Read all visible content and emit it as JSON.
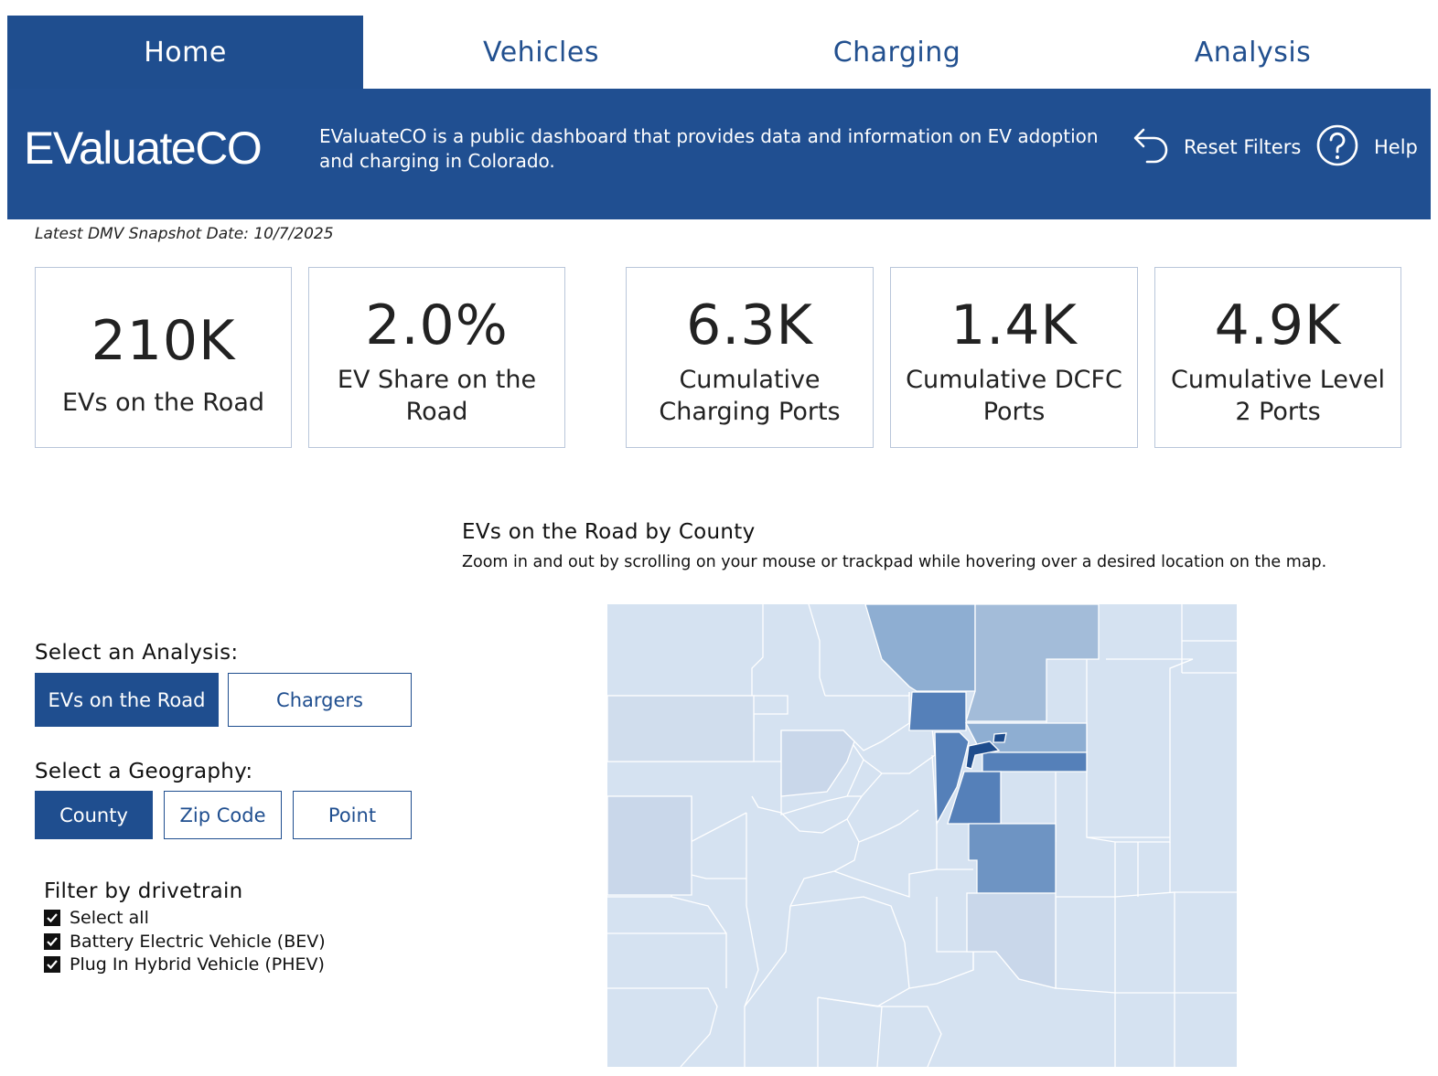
{
  "tabs": [
    {
      "label": "Home",
      "active": true
    },
    {
      "label": "Vehicles",
      "active": false
    },
    {
      "label": "Charging",
      "active": false
    },
    {
      "label": "Analysis",
      "active": false
    }
  ],
  "header": {
    "logo": "EValuateCO",
    "description": "EValuateCO is a public dashboard that provides data and information on EV adoption and charging in Colorado.",
    "reset_label": "Reset Filters",
    "reset_icon": "undo-arrow-icon",
    "help_label": "Help",
    "help_icon": "question-circle-icon"
  },
  "snapshot": "Latest DMV Snapshot Date: 10/7/2025",
  "kpis": [
    {
      "value": "210K",
      "label": "EVs on the Road"
    },
    {
      "value": "2.0%",
      "label": "EV Share on the Road"
    },
    {
      "value": "6.3K",
      "label": "Cumulative Charging Ports"
    },
    {
      "value": "1.4K",
      "label": "Cumulative DCFC Ports"
    },
    {
      "value": "4.9K",
      "label": "Cumulative Level 2 Ports"
    }
  ],
  "controls": {
    "analysis_title": "Select an Analysis:",
    "analysis_options": [
      {
        "label": "EVs on the Road",
        "selected": true
      },
      {
        "label": "Chargers",
        "selected": false
      }
    ],
    "geography_title": "Select a Geography:",
    "geography_options": [
      {
        "label": "County",
        "selected": true
      },
      {
        "label": "Zip Code",
        "selected": false
      },
      {
        "label": "Point",
        "selected": false
      }
    ],
    "filter_title": "Filter by drivetrain",
    "filter_options": [
      {
        "label": "Select all",
        "checked": true
      },
      {
        "label": "Battery Electric Vehicle (BEV)",
        "checked": true
      },
      {
        "label": "Plug In Hybrid Vehicle (PHEV)",
        "checked": true
      }
    ]
  },
  "map": {
    "title": "EVs on the Road by County",
    "subtitle": "Zoom in and out by scrolling on your mouse or trackpad while hovering over a desired location on the map.",
    "colors": {
      "base": "#d5e2f1",
      "low": "#c9d7ea",
      "mid_low": "#a3bcd9",
      "mid": "#8eaed2",
      "mid_high": "#6e94c3",
      "high": "#5580b9",
      "top": "#1e4c8c"
    }
  },
  "colors": {
    "brand": "#1f4e8f",
    "card_border": "#b9c6da"
  }
}
